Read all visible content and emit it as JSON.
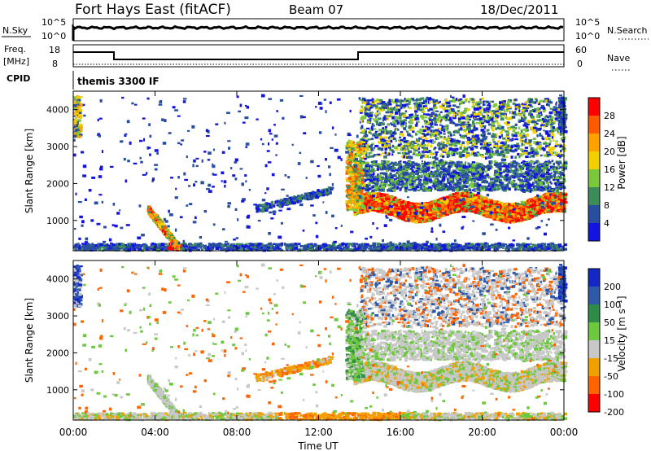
{
  "header": {
    "station": "Fort Hays East (fitACF)",
    "beam": "Beam 07",
    "date": "18/Dec/2011"
  },
  "top_panels": {
    "nsky_label": "N.Sky",
    "nsky_ticks": [
      "10^5",
      "10^0"
    ],
    "nsearch_label": "N.Search",
    "nsearch_ticks": [
      "10^5",
      "10^0"
    ],
    "freq_label": "Freq.",
    "freq_unit": "[MHz]",
    "freq_ticks": [
      "18",
      "8"
    ],
    "nave_label": "Nave",
    "nave_ticks": [
      "60",
      "0"
    ],
    "cpid_label": "CPID",
    "cpid_value": "themis 3300 IF"
  },
  "power_colorbar": {
    "label": "Power [dB]",
    "ticks": [
      "28",
      "24",
      "20",
      "16",
      "12",
      "8",
      "4"
    ],
    "colors": [
      "#ff0000",
      "#ff5a00",
      "#ffa200",
      "#f0d000",
      "#7cc83c",
      "#3c8c5a",
      "#284ea0",
      "#1414e0"
    ]
  },
  "velocity_colorbar": {
    "label": "Velocity [m s⁻¹]",
    "ticks": [
      "200",
      "100",
      "50",
      "15",
      "-15",
      "-50",
      "-100",
      "-200"
    ],
    "colors": [
      "#1428c8",
      "#2e5aa8",
      "#2e8c46",
      "#6cc83c",
      "#c8c8c8",
      "#f0a000",
      "#ff6400",
      "#ff0000"
    ]
  },
  "x_axis": {
    "label": "Time UT",
    "ticks": [
      "00:00",
      "04:00",
      "08:00",
      "12:00",
      "16:00",
      "20:00",
      "00:00"
    ]
  },
  "chart_data": [
    {
      "type": "heatmap",
      "title": "Power",
      "ylabel": "Slant Range [km]",
      "xlabel": "Time UT",
      "ylim": [
        180,
        4500
      ],
      "y_ticks": [
        1000,
        2000,
        3000,
        4000
      ],
      "x_ticks_hours": [
        0,
        4,
        8,
        12,
        16,
        20,
        24
      ],
      "colorbar": {
        "label": "Power [dB]",
        "range": [
          0,
          32
        ]
      }
    },
    {
      "type": "heatmap",
      "title": "Velocity",
      "ylabel": "Slant Range [km]",
      "xlabel": "Time UT",
      "ylim": [
        180,
        4500
      ],
      "y_ticks": [
        1000,
        2000,
        3000,
        4000
      ],
      "x_ticks_hours": [
        0,
        4,
        8,
        12,
        16,
        20,
        24
      ],
      "colorbar": {
        "label": "Velocity [m s⁻¹]",
        "range": [
          -250,
          250
        ]
      }
    }
  ]
}
